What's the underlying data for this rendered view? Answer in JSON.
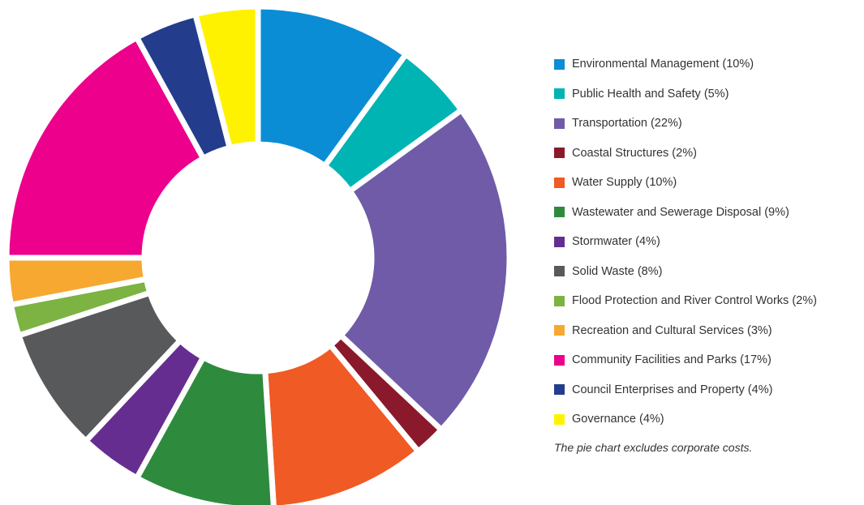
{
  "chart_data": {
    "type": "pie",
    "categories": [
      "Environmental Management",
      "Public Health and Safety",
      "Transportation",
      "Coastal Structures",
      "Water Supply",
      "Wastewater and Sewerage Disposal",
      "Stormwater",
      "Solid Waste",
      "Flood Protection and River Control Works",
      "Recreation and Cultural Services",
      "Community Facilities and Parks",
      "Council Enterprises and Property",
      "Governance"
    ],
    "values": [
      10,
      5,
      22,
      2,
      10,
      9,
      4,
      8,
      2,
      3,
      17,
      4,
      4
    ],
    "legend_labels": [
      "Environmental Management (10%)",
      "Public Health and Safety (5%)",
      "Transportation (22%)",
      "Coastal Structures (2%)",
      "Water Supply (10%)",
      "Wastewater and Sewerage Disposal (9%)",
      "Stormwater (4%)",
      "Solid Waste (8%)",
      "Flood Protection and River Control Works (2%)",
      "Recreation and Cultural Services (3%)",
      "Community Facilities and Parks (17%)",
      "Council Enterprises and Property (4%)",
      "Governance (4%)"
    ],
    "colors": [
      "#0a8dd5",
      "#00b4b4",
      "#6f5ba8",
      "#8a1a2b",
      "#f05a24",
      "#2e8b3d",
      "#662d91",
      "#58595b",
      "#7cb342",
      "#f7a831",
      "#ec008c",
      "#233d8c",
      "#fff200"
    ],
    "donut": true,
    "legend_position": "right",
    "footnote": "The pie chart excludes corporate costs."
  }
}
